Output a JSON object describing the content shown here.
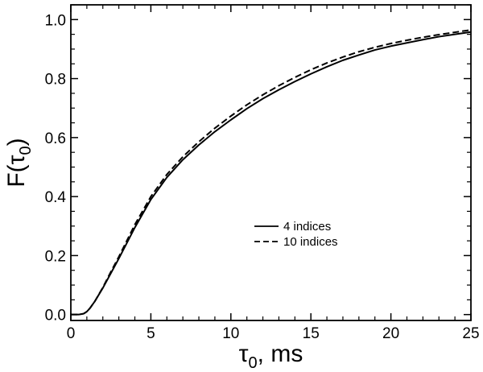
{
  "chart_data": {
    "type": "line",
    "title": "",
    "xlabel": {
      "main": "τ",
      "sub": "0",
      "rest": ", ms"
    },
    "ylabel": {
      "prefix": "F(τ",
      "sub": "0",
      "suffix": ")"
    },
    "xlim": [
      0,
      25
    ],
    "ylim": [
      -0.02,
      1.05
    ],
    "x_major_ticks": [
      0,
      5,
      10,
      15,
      20,
      25
    ],
    "x_tick_labels": [
      "0",
      "5",
      "10",
      "15",
      "20",
      "25"
    ],
    "y_major_ticks": [
      0.0,
      0.2,
      0.4,
      0.6,
      0.8,
      1.0
    ],
    "y_tick_labels": [
      "0.0",
      "0.2",
      "0.4",
      "0.6",
      "0.8",
      "1.0"
    ],
    "x_minor_step": 1,
    "y_minor_step": 0.05,
    "grid": false,
    "legend_position": "center-right",
    "series": [
      {
        "name": "4 indices",
        "line_style": "solid",
        "color": "#000000",
        "x": [
          0,
          0.5,
          0.8,
          1.0,
          1.2,
          1.5,
          2.0,
          2.5,
          3.0,
          4.0,
          5.0,
          6.0,
          7.0,
          8.0,
          9.0,
          10.0,
          11.0,
          12.0,
          13.0,
          14.0,
          15.0,
          16.0,
          17.0,
          18.0,
          19.0,
          20.0,
          21.0,
          22.0,
          23.0,
          24.0,
          25.0
        ],
        "y": [
          0.0,
          0.0,
          0.003,
          0.01,
          0.022,
          0.045,
          0.09,
          0.14,
          0.19,
          0.295,
          0.39,
          0.465,
          0.525,
          0.575,
          0.62,
          0.66,
          0.698,
          0.732,
          0.762,
          0.79,
          0.816,
          0.84,
          0.862,
          0.88,
          0.897,
          0.91,
          0.921,
          0.932,
          0.942,
          0.95,
          0.958
        ]
      },
      {
        "name": "10 indices",
        "line_style": "dashed",
        "color": "#000000",
        "x": [
          0,
          0.5,
          0.8,
          1.0,
          1.2,
          1.5,
          2.0,
          2.5,
          3.0,
          4.0,
          5.0,
          6.0,
          7.0,
          8.0,
          9.0,
          10.0,
          11.0,
          12.0,
          13.0,
          14.0,
          15.0,
          16.0,
          17.0,
          18.0,
          19.0,
          20.0,
          21.0,
          22.0,
          23.0,
          24.0,
          25.0
        ],
        "y": [
          0.0,
          0.0,
          0.003,
          0.01,
          0.022,
          0.045,
          0.092,
          0.145,
          0.196,
          0.305,
          0.4,
          0.475,
          0.535,
          0.586,
          0.632,
          0.673,
          0.711,
          0.745,
          0.776,
          0.804,
          0.83,
          0.853,
          0.873,
          0.891,
          0.906,
          0.919,
          0.93,
          0.94,
          0.949,
          0.957,
          0.965
        ]
      }
    ]
  }
}
